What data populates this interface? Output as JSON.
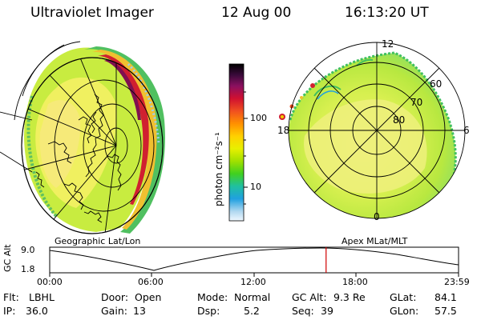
{
  "header": {
    "instrument": "Ultraviolet Imager",
    "date": "12 Aug 00",
    "time": "16:13:20 UT"
  },
  "colorbar": {
    "unit_label": "photon cm⁻²s⁻¹",
    "ticks": [
      "100",
      "10"
    ],
    "colors": [
      "#000000",
      "#3a0a3a",
      "#8a1060",
      "#d01030",
      "#f05020",
      "#ff9000",
      "#ffd000",
      "#e8f000",
      "#a0e000",
      "#40d020",
      "#20c0a0",
      "#20a0e0",
      "#b0d8f0",
      "#f0f8ff"
    ]
  },
  "left_panel": {
    "caption": "Geographic Lat/Lon"
  },
  "right_panel": {
    "caption": "Apex MLat/MLT",
    "lat_labels": [
      "60",
      "70",
      "80"
    ],
    "mlt_labels": {
      "top": "12",
      "left": "18",
      "right": "6",
      "bottom": "0"
    }
  },
  "altitude_plot": {
    "ylabel": "GC Alt",
    "y_ticks": [
      "9.0",
      "1.8"
    ],
    "x_ticks": [
      "00:00",
      "06:00",
      "12:00",
      "18:00",
      "23:59"
    ],
    "current_time_fraction": 0.676
  },
  "info": {
    "filter_label": "Flt:",
    "filter_value": "LBHL",
    "ip_label": "IP:",
    "ip_value": "36.0",
    "door_label": "Door:",
    "door_value": "Open",
    "gain_label": "Gain:",
    "gain_value": "13",
    "mode_label": "Mode:",
    "mode_value": "Normal",
    "dsp_label": "Dsp:",
    "dsp_value": "5.2",
    "gcalt_label": "GC Alt:",
    "gcalt_value": "9.3 Re",
    "seq_label": "Seq:",
    "seq_value": "39",
    "glat_label": "GLat:",
    "glat_value": "84.1",
    "glon_label": "GLon:",
    "glon_value": "57.5"
  }
}
